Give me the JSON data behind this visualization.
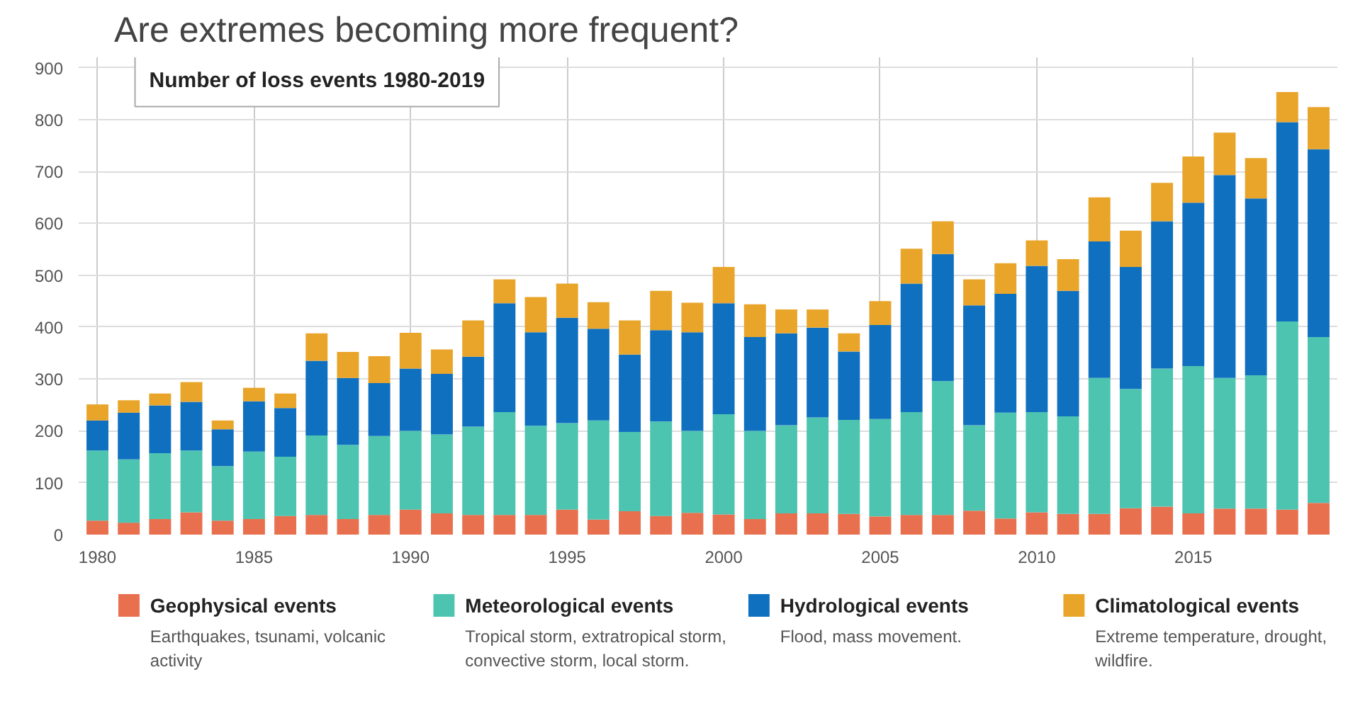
{
  "chart_data": {
    "type": "bar",
    "stacked": true,
    "title": "Are extremes becoming more frequent?",
    "subtitle": "Number of loss events 1980-2019",
    "x": [
      1980,
      1981,
      1982,
      1983,
      1984,
      1985,
      1986,
      1987,
      1988,
      1989,
      1990,
      1991,
      1992,
      1993,
      1994,
      1995,
      1996,
      1997,
      1998,
      1999,
      2000,
      2001,
      2002,
      2003,
      2004,
      2005,
      2006,
      2007,
      2008,
      2009,
      2010,
      2011,
      2012,
      2013,
      2014,
      2015,
      2016,
      2017,
      2018,
      2019
    ],
    "series": [
      {
        "name": "Geophysical events",
        "color": "#e8704f",
        "values": [
          27,
          23,
          30,
          43,
          27,
          30,
          36,
          38,
          30,
          38,
          48,
          41,
          38,
          38,
          38,
          48,
          29,
          45,
          36,
          42,
          39,
          30,
          41,
          41,
          40,
          35,
          38,
          38,
          46,
          31,
          43,
          40,
          40,
          51,
          54,
          41,
          50,
          50,
          48,
          61
        ]
      },
      {
        "name": "Meteorological events",
        "color": "#4dc4b0",
        "values": [
          135,
          122,
          127,
          119,
          105,
          130,
          114,
          153,
          143,
          152,
          152,
          152,
          170,
          198,
          172,
          167,
          191,
          153,
          182,
          158,
          193,
          170,
          170,
          185,
          181,
          188,
          198,
          258,
          165,
          204,
          193,
          188,
          262,
          230,
          266,
          284,
          252,
          257,
          363,
          320
        ]
      },
      {
        "name": "Hydrological events",
        "color": "#1070c0",
        "values": [
          58,
          90,
          92,
          94,
          71,
          97,
          94,
          144,
          129,
          102,
          120,
          117,
          135,
          210,
          180,
          203,
          177,
          149,
          176,
          190,
          214,
          181,
          177,
          173,
          132,
          181,
          248,
          245,
          231,
          229,
          282,
          242,
          263,
          235,
          284,
          315,
          391,
          341,
          384,
          362
        ]
      },
      {
        "name": "Climatological events",
        "color": "#e8a52a",
        "values": [
          31,
          24,
          23,
          38,
          17,
          26,
          28,
          53,
          50,
          52,
          69,
          47,
          70,
          46,
          68,
          66,
          51,
          66,
          76,
          57,
          70,
          63,
          46,
          35,
          35,
          46,
          67,
          63,
          50,
          59,
          49,
          61,
          85,
          70,
          74,
          89,
          82,
          78,
          58,
          81
        ]
      }
    ],
    "xlim": [
      1979.4,
      2019.6
    ],
    "xticks": [
      1980,
      1985,
      1990,
      1995,
      2000,
      2005,
      2010,
      2015
    ],
    "ylim": [
      0,
      920
    ],
    "yticks": [
      0,
      100,
      200,
      300,
      400,
      500,
      600,
      700,
      800,
      900
    ],
    "grid": true,
    "legend": "bottom",
    "annotations": [
      "Earthquakes, tsunami, volcanic activity",
      "Tropical storm, extratropical storm, convective storm, local storm.",
      "Flood, mass movement.",
      "Extreme temperature, drought, wildfire."
    ]
  }
}
